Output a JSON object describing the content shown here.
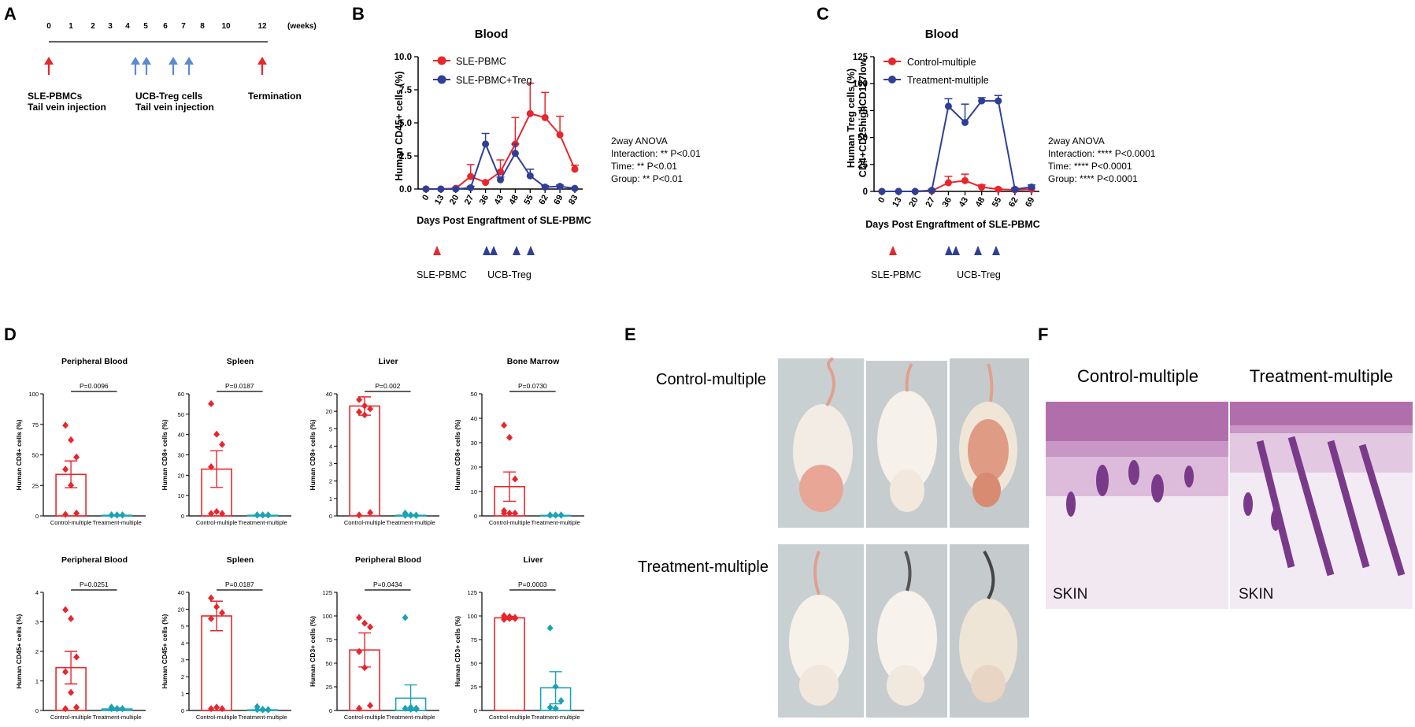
{
  "panel_letters": {
    "a": "A",
    "b": "B",
    "c": "C",
    "d": "D",
    "e": "E",
    "f": "F"
  },
  "timeline": {
    "weeks": [
      "0",
      "1",
      "2",
      "3",
      "4",
      "5",
      "6",
      "7",
      "8",
      "10",
      "12"
    ],
    "unit": "(weeks)",
    "red_arrow_weeks": [
      "0",
      "12"
    ],
    "blue_arrow_weeks": [
      "4",
      "4.5",
      "6",
      "7"
    ],
    "label_pbmc_1": "SLE-PBMCs",
    "label_pbmc_2": "Tail vein injection",
    "label_treg_1": "UCB-Treg cells",
    "label_treg_2": "Tail vein injection",
    "label_term": "Termination"
  },
  "colors": {
    "red": "#e8262b",
    "blue": "#2f3f97",
    "teal": "#1ba3b5",
    "arrow_blue": "#5b8bd0",
    "black": "#000000"
  },
  "chart_data": [
    {
      "id": "B",
      "type": "line",
      "title": "Blood",
      "xlabel": "Days Post Engraftment of SLE-PBMC",
      "ylabel": "Human CD45+ cells (%)",
      "categories": [
        "0",
        "13",
        "20",
        "27",
        "36",
        "43",
        "48",
        "55",
        "62",
        "69",
        "83"
      ],
      "yticks": [
        "0.0",
        "2.5",
        "5.0",
        "7.5",
        "10.0"
      ],
      "ylim": [
        0,
        10
      ],
      "series": [
        {
          "name": "SLE-PBMC",
          "color": "#e8262b",
          "values": [
            0,
            0,
            0.05,
            0.95,
            0.5,
            1.3,
            3.4,
            5.7,
            5.4,
            4.1,
            1.5
          ],
          "err": [
            0,
            0,
            0.05,
            0.9,
            0,
            0.9,
            2.0,
            2.3,
            1.9,
            1.4,
            0.3
          ]
        },
        {
          "name": "SLE-PBMC+Treg",
          "color": "#2f3f97",
          "values": [
            0,
            0,
            0,
            0.1,
            3.4,
            0.7,
            2.7,
            1.0,
            0.15,
            0.2,
            0.05
          ],
          "err": [
            0,
            0,
            0,
            0.1,
            0.8,
            0.2,
            0.7,
            0.5,
            0.1,
            0.1,
            0
          ]
        }
      ],
      "stats": [
        "2way ANOVA",
        "Interaction: ** P<0.01",
        "Time: ** P<0.01",
        "Group: ** P<0.01"
      ],
      "markers": {
        "pbmc_label": "SLE-PBMC",
        "treg_label": "UCB-Treg"
      }
    },
    {
      "id": "C",
      "type": "line",
      "title": "Blood",
      "xlabel": "Days Post Engraftment of SLE-PBMC",
      "ylabel_line1": "Human Treg cells (%)",
      "ylabel_line2": "CD4+CD25highCD127low",
      "categories": [
        "0",
        "13",
        "20",
        "27",
        "36",
        "43",
        "48",
        "55",
        "62",
        "69"
      ],
      "yticks": [
        "0",
        "25",
        "50",
        "75",
        "100",
        "125"
      ],
      "ylim": [
        0,
        125
      ],
      "series": [
        {
          "name": "Control-multiple",
          "color": "#e8262b",
          "values": [
            0,
            0,
            0,
            0.5,
            8,
            10,
            4,
            2,
            1.5,
            2
          ],
          "err": [
            0,
            0,
            0,
            0.5,
            6,
            6,
            2,
            1,
            0.5,
            1
          ]
        },
        {
          "name": "Treatment-multiple",
          "color": "#2f3f97",
          "values": [
            0,
            0,
            0,
            1,
            79,
            64,
            84,
            84,
            2,
            4
          ],
          "err": [
            0,
            0,
            0,
            1,
            7,
            17,
            3,
            5,
            1,
            2
          ]
        }
      ],
      "stats": [
        "2way ANOVA",
        "Interaction: **** P<0.0001",
        "Time: **** P<0.0001",
        "Group: **** P<0.0001"
      ],
      "markers": {
        "pbmc_label": "SLE-PBMC",
        "treg_label": "UCB-Treg"
      }
    }
  ],
  "dot_charts": [
    {
      "title": "Peripheral Blood",
      "ylabel": "Human CD8+ cells (%)",
      "pval": "P=0.0096",
      "yticks": [
        "0",
        "25",
        "50",
        "75",
        "100"
      ],
      "ymax": 100,
      "ctrl_mean": 34,
      "ctrl_err": 11,
      "treat_mean": 0.5,
      "treat_err": 0.3,
      "ctrl_pts": [
        74,
        62,
        48,
        38,
        25,
        2,
        1
      ],
      "treat_pts": [
        0.5,
        0.5,
        0.5,
        0.5,
        0.5,
        0.5,
        0.5
      ]
    },
    {
      "title": "Spleen",
      "ylabel": "Human CD8+ cells (%)",
      "pval": "P=0.0187",
      "yticks": [
        "0",
        "10",
        "20",
        "30",
        "40",
        "50",
        "60"
      ],
      "ymax": 60,
      "ctrl_mean": 23,
      "ctrl_err": 9,
      "treat_mean": 0.3,
      "treat_err": 0.2,
      "ctrl_pts": [
        55,
        40,
        35,
        24,
        2,
        1,
        1
      ],
      "treat_pts": [
        0.3,
        0.3,
        0.3,
        0.3,
        0.3,
        0.3,
        0.3
      ]
    },
    {
      "title": "Liver",
      "ylabel": "Human CD8+ cells (%)",
      "pval": "P=0.002",
      "yticks": [
        "0",
        "1",
        "2",
        "3",
        "4",
        "5",
        "20",
        "40"
      ],
      "ymax": 40,
      "ctrl_mean": 36,
      "ctrl_err": 3,
      "treat_mean": 0.2,
      "treat_err": 0.2,
      "ctrl_pts": [
        38,
        36,
        35,
        34,
        33,
        1,
        0.2
      ],
      "treat_pts": [
        0.8,
        0.2,
        0.1,
        0.1,
        0.1,
        0.1
      ]
    },
    {
      "title": "Bone Marrow",
      "ylabel": "Human CD8+ cells (%)",
      "pval": "P=0.0730",
      "yticks": [
        "0",
        "10",
        "20",
        "30",
        "40",
        "50"
      ],
      "ymax": 50,
      "ctrl_mean": 12,
      "ctrl_err": 6,
      "treat_mean": 0.2,
      "treat_err": 0.1,
      "ctrl_pts": [
        37,
        32,
        15,
        2,
        1,
        1,
        1
      ],
      "treat_pts": [
        0.2,
        0.2,
        0.2,
        0.2,
        0.2,
        0.2,
        0.2
      ]
    },
    {
      "title": "Peripheral Blood",
      "ylabel": "Human CD45+ cells (%)",
      "pval": "P=0.0251",
      "yticks": [
        "0",
        "1",
        "2",
        "3",
        "4"
      ],
      "ymax": 4,
      "ctrl_mean": 1.45,
      "ctrl_err": 0.55,
      "treat_mean": 0.05,
      "treat_err": 0.03,
      "ctrl_pts": [
        3.4,
        3.1,
        1.8,
        1.3,
        0.6,
        0.1,
        0.05
      ],
      "treat_pts": [
        0.1,
        0.05,
        0.05,
        0.05,
        0.05,
        0.05
      ]
    },
    {
      "title": "Spleen",
      "ylabel": "Human CD45+ cells (%)",
      "pval": "P=0.0187",
      "yticks": [
        "0",
        "1",
        "2",
        "3",
        "4",
        "5",
        "20",
        "40"
      ],
      "ymax": 40,
      "ctrl_mean": 32,
      "ctrl_err": 5,
      "treat_mean": 0.2,
      "treat_err": 0.2,
      "ctrl_pts": [
        38,
        35,
        33,
        31,
        1,
        0.5,
        0.5
      ],
      "treat_pts": [
        1.2,
        0.3,
        0.2,
        0.2,
        0.1,
        0.1
      ]
    },
    {
      "title": "Peripheral Blood",
      "ylabel": "Human CD3+ cells (%)",
      "pval": "P=0.0434",
      "yticks": [
        "0",
        "25",
        "50",
        "75",
        "100",
        "125"
      ],
      "ymax": 125,
      "ctrl_mean": 64,
      "ctrl_err": 18,
      "treat_mean": 13,
      "treat_err": 14,
      "ctrl_pts": [
        98,
        92,
        88,
        62,
        45,
        5,
        2
      ],
      "treat_pts": [
        98,
        3,
        2,
        2,
        1,
        1
      ]
    },
    {
      "title": "Liver",
      "ylabel": "Human CD3+ cells (%)",
      "pval": "P=0.0003",
      "yticks": [
        "0",
        "25",
        "50",
        "75",
        "100",
        "125"
      ],
      "ymax": 125,
      "ctrl_mean": 98,
      "ctrl_err": 1.5,
      "treat_mean": 24,
      "treat_err": 17,
      "ctrl_pts": [
        100,
        99,
        98,
        98,
        97,
        97,
        96
      ],
      "treat_pts": [
        87,
        25,
        10,
        3,
        2
      ]
    }
  ],
  "dot_xlabels": {
    "ctrl": "Control-multiple",
    "treat": "Treatment-multiple"
  },
  "panel_e": {
    "row1": "Control-multiple",
    "row2": "Treatment-multiple"
  },
  "panel_f": {
    "left": "Control-multiple",
    "right": "Treatment-multiple",
    "tag": "SKIN"
  }
}
